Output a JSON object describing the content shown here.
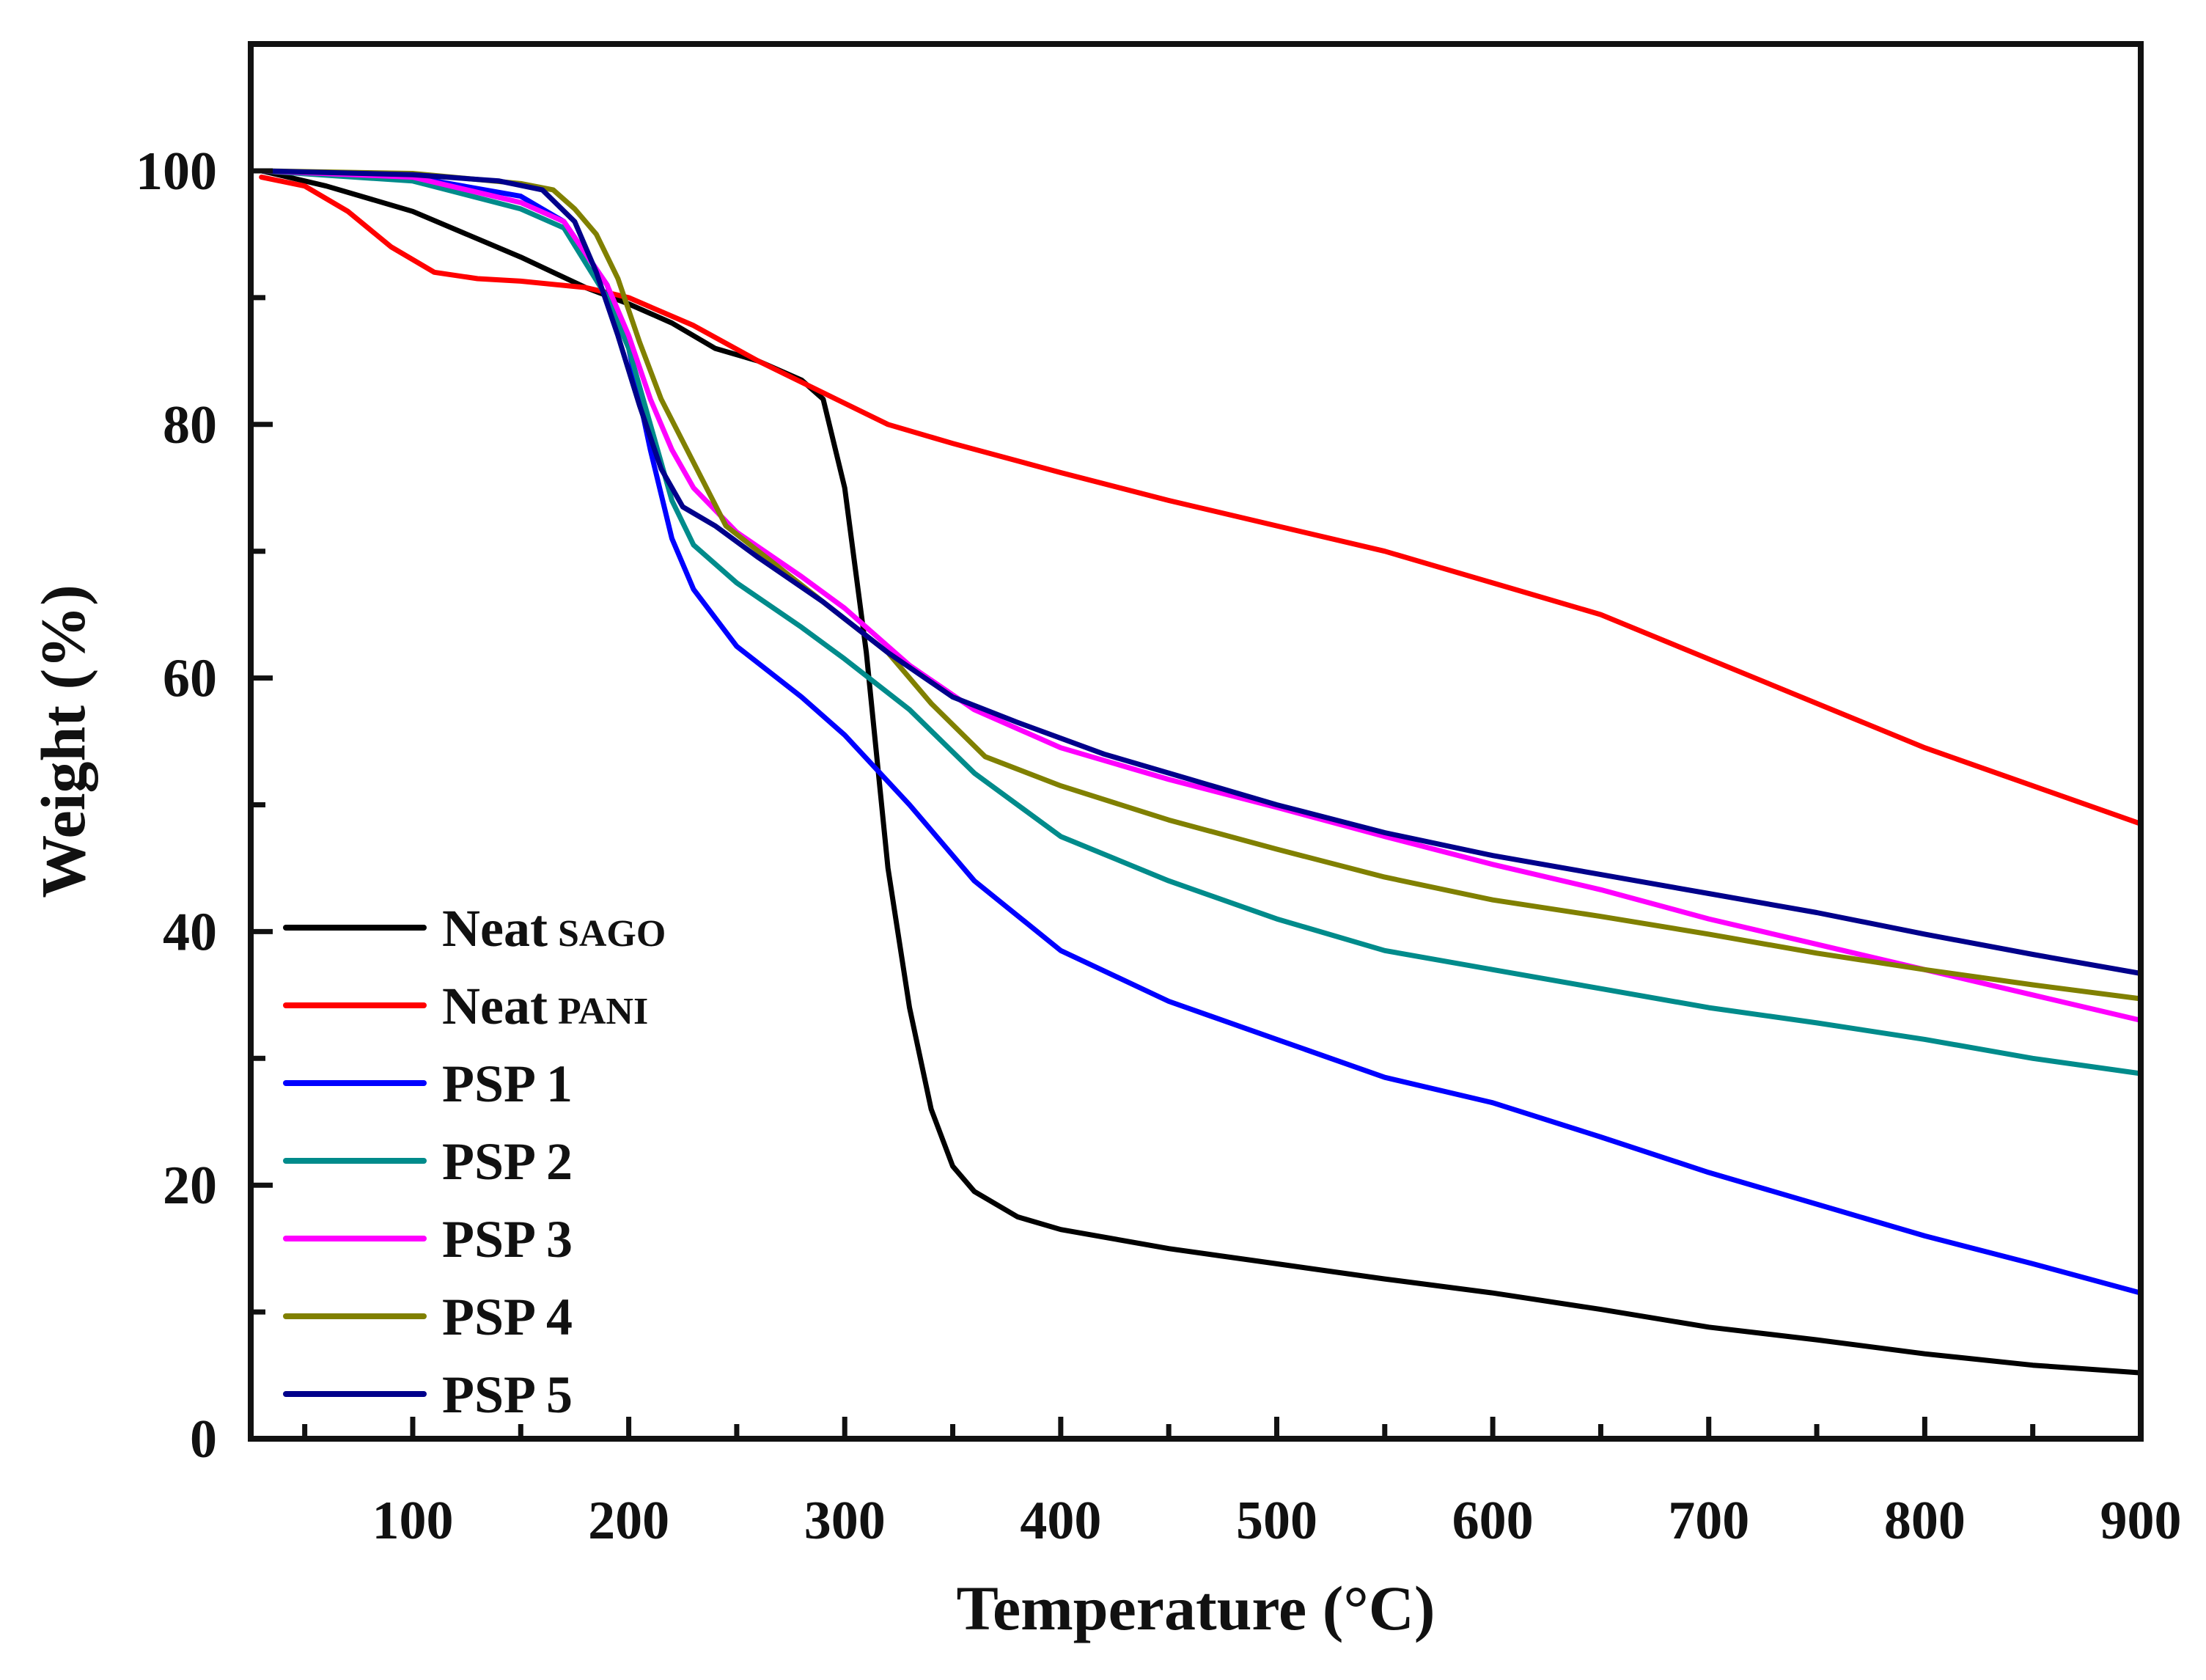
{
  "chart_data": {
    "type": "line",
    "title": "",
    "xlabel": "Temperature (°C)",
    "ylabel": "Weight (%)",
    "xlim": [
      25,
      900
    ],
    "ylim": [
      0,
      110
    ],
    "x_ticks": [
      100,
      200,
      300,
      400,
      500,
      600,
      700,
      800,
      900
    ],
    "x_tick_labels": [
      "100",
      "200",
      "300",
      "400",
      "500",
      "600",
      "700",
      "800",
      "900"
    ],
    "y_ticks": [
      0,
      20,
      40,
      60,
      80,
      100
    ],
    "y_tick_labels": [
      "0",
      "20",
      "40",
      "60",
      "80",
      "100"
    ],
    "legend_position": "bottom-left",
    "grid": false,
    "series": [
      {
        "name": "Neat",
        "name_sub": "SAGO",
        "color": "#000000",
        "x": [
          30,
          60,
          100,
          150,
          180,
          200,
          220,
          240,
          260,
          280,
          290,
          300,
          310,
          320,
          330,
          340,
          350,
          360,
          380,
          400,
          450,
          500,
          550,
          600,
          650,
          700,
          750,
          800,
          850,
          900
        ],
        "y": [
          100,
          98.8,
          96.8,
          93.2,
          90.8,
          89.5,
          88.0,
          86.0,
          85.0,
          83.5,
          82.0,
          75.0,
          62.0,
          45.0,
          34.0,
          26.0,
          21.5,
          19.5,
          17.5,
          16.5,
          15.0,
          13.8,
          12.6,
          11.5,
          10.2,
          8.8,
          7.8,
          6.7,
          5.8,
          5.2
        ]
      },
      {
        "name": "Neat",
        "name_sub": "PANI",
        "color": "#ff0000",
        "x": [
          30,
          50,
          70,
          90,
          110,
          130,
          150,
          180,
          200,
          230,
          260,
          290,
          320,
          350,
          400,
          450,
          500,
          550,
          600,
          650,
          700,
          750,
          800,
          850,
          900
        ],
        "y": [
          99.5,
          98.8,
          96.8,
          94.0,
          92.0,
          91.5,
          91.3,
          90.8,
          90.0,
          87.8,
          85.0,
          82.5,
          80.0,
          78.5,
          76.2,
          74.0,
          72.0,
          70.0,
          67.5,
          65.0,
          61.5,
          58.0,
          54.5,
          51.5,
          48.5
        ]
      },
      {
        "name": "PSP 1",
        "color": "#0000ff",
        "x": [
          30,
          100,
          150,
          170,
          190,
          200,
          210,
          220,
          230,
          250,
          280,
          300,
          330,
          360,
          400,
          450,
          500,
          550,
          600,
          650,
          700,
          750,
          800,
          850,
          900
        ],
        "y": [
          100,
          99.5,
          98.0,
          96.0,
          91.0,
          86.0,
          78.0,
          71.0,
          67.0,
          62.5,
          58.5,
          55.5,
          50.0,
          44.0,
          38.5,
          34.5,
          31.5,
          28.5,
          26.5,
          23.8,
          21.0,
          18.5,
          16.0,
          13.8,
          11.5
        ]
      },
      {
        "name": "PSP 2",
        "color": "#008b8b",
        "x": [
          30,
          100,
          150,
          170,
          190,
          200,
          210,
          220,
          230,
          250,
          280,
          300,
          330,
          360,
          400,
          450,
          500,
          550,
          600,
          650,
          700,
          750,
          800,
          850,
          900
        ],
        "y": [
          100,
          99.2,
          97.0,
          95.5,
          90.0,
          86.0,
          80.0,
          74.0,
          70.5,
          67.5,
          64.0,
          61.5,
          57.5,
          52.5,
          47.5,
          44.0,
          41.0,
          38.5,
          37.0,
          35.5,
          34.0,
          32.8,
          31.5,
          30.0,
          28.8
        ]
      },
      {
        "name": "PSP 3",
        "color": "#ff00ff",
        "x": [
          30,
          100,
          150,
          170,
          190,
          200,
          210,
          220,
          230,
          250,
          280,
          300,
          330,
          360,
          400,
          450,
          500,
          550,
          600,
          650,
          700,
          750,
          800,
          850,
          900
        ],
        "y": [
          100,
          99.5,
          97.5,
          96.0,
          91.0,
          87.0,
          82.0,
          78.0,
          75.0,
          71.5,
          68.0,
          65.5,
          61.0,
          57.5,
          54.5,
          52.0,
          49.8,
          47.5,
          45.3,
          43.3,
          41.0,
          39.0,
          37.0,
          35.0,
          33.0
        ]
      },
      {
        "name": "PSP 4",
        "color": "#808000",
        "x": [
          30,
          100,
          150,
          165,
          175,
          185,
          195,
          205,
          215,
          230,
          245,
          260,
          290,
          320,
          340,
          365,
          400,
          450,
          500,
          550,
          600,
          650,
          700,
          750,
          800,
          850,
          900
        ],
        "y": [
          100,
          99.8,
          99.0,
          98.5,
          97.0,
          95.0,
          91.5,
          86.5,
          82.0,
          77.0,
          72.0,
          70.0,
          66.0,
          62.0,
          58.0,
          53.8,
          51.5,
          48.8,
          46.5,
          44.3,
          42.5,
          41.2,
          39.8,
          38.3,
          37.0,
          35.8,
          34.7
        ]
      },
      {
        "name": "PSP 5",
        "color": "#00008b",
        "x": [
          30,
          100,
          140,
          160,
          175,
          185,
          195,
          205,
          215,
          225,
          240,
          260,
          290,
          320,
          350,
          380,
          420,
          460,
          500,
          550,
          600,
          650,
          700,
          750,
          800,
          850,
          900
        ],
        "y": [
          100,
          99.7,
          99.2,
          98.5,
          96.0,
          92.0,
          87.0,
          81.5,
          76.5,
          73.5,
          72.0,
          69.5,
          66.0,
          62.0,
          58.5,
          56.5,
          54.0,
          52.0,
          50.0,
          47.8,
          46.0,
          44.5,
          43.0,
          41.5,
          39.8,
          38.2,
          36.7
        ]
      }
    ]
  }
}
